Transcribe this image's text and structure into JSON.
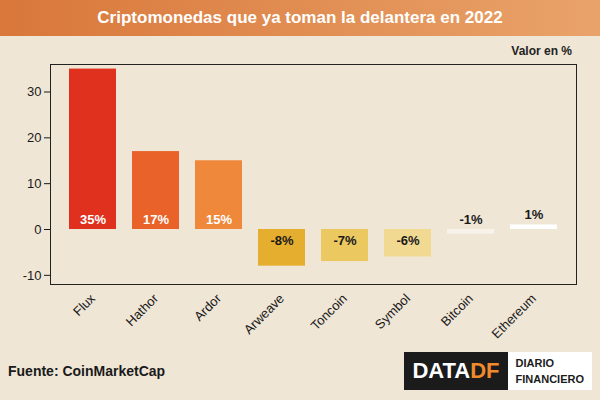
{
  "chart_data": {
    "type": "bar",
    "title": "Criptomonedas que ya toman la delantera en 2022",
    "annotations": [
      "Valor en %"
    ],
    "source": "Fuente: CoinMarketCap",
    "logo": [
      "DATA",
      "DF",
      "DIARIO",
      "FINANCIERO"
    ],
    "categories": [
      "Flux",
      "Hathor",
      "Ardor",
      "Arweave",
      "Toncoin",
      "Symbol",
      "Bitcoin",
      "Ethereum"
    ],
    "values": [
      35,
      17,
      15,
      -8,
      -7,
      -6,
      -1,
      1
    ],
    "value_labels": [
      "35%",
      "17%",
      "15%",
      "-8%",
      "-7%",
      "-6%",
      "-1%",
      "1%"
    ],
    "colors": [
      "#e0301e",
      "#e8622a",
      "#f0883c",
      "#e6ae2e",
      "#ecc860",
      "#f1d992",
      "#f7f3ea",
      "#ffffff"
    ],
    "ylim": [
      -12,
      36
    ],
    "yticks": [
      -10,
      0,
      10,
      20,
      30
    ],
    "grid": false,
    "data_labels": true
  }
}
